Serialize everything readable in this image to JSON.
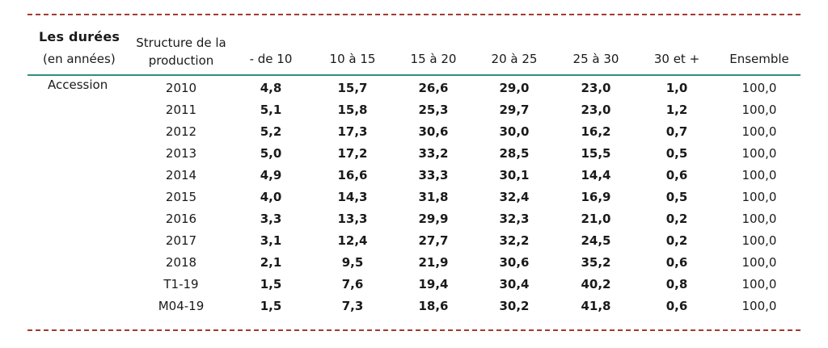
{
  "header": {
    "title": "Les durées",
    "subtitle": "(en années)",
    "structure_label": "Structure de la production",
    "columns": [
      "- de 10",
      "10 à 15",
      "15 à 20",
      "20 à 25",
      "25 à 30",
      "30 et +",
      "Ensemble"
    ]
  },
  "category": "Accession",
  "rows": [
    {
      "period": "2010",
      "values": [
        "4,8",
        "15,7",
        "26,6",
        "29,0",
        "23,0",
        "1,0"
      ],
      "total": "100,0"
    },
    {
      "period": "2011",
      "values": [
        "5,1",
        "15,8",
        "25,3",
        "29,7",
        "23,0",
        "1,2"
      ],
      "total": "100,0"
    },
    {
      "period": "2012",
      "values": [
        "5,2",
        "17,3",
        "30,6",
        "30,0",
        "16,2",
        "0,7"
      ],
      "total": "100,0"
    },
    {
      "period": "2013",
      "values": [
        "5,0",
        "17,2",
        "33,2",
        "28,5",
        "15,5",
        "0,5"
      ],
      "total": "100,0"
    },
    {
      "period": "2014",
      "values": [
        "4,9",
        "16,6",
        "33,3",
        "30,1",
        "14,4",
        "0,6"
      ],
      "total": "100,0"
    },
    {
      "period": "2015",
      "values": [
        "4,0",
        "14,3",
        "31,8",
        "32,4",
        "16,9",
        "0,5"
      ],
      "total": "100,0"
    },
    {
      "period": "2016",
      "values": [
        "3,3",
        "13,3",
        "29,9",
        "32,3",
        "21,0",
        "0,2"
      ],
      "total": "100,0"
    },
    {
      "period": "2017",
      "values": [
        "3,1",
        "12,4",
        "27,7",
        "32,2",
        "24,5",
        "0,2"
      ],
      "total": "100,0"
    },
    {
      "period": "2018",
      "values": [
        "2,1",
        "9,5",
        "21,9",
        "30,6",
        "35,2",
        "0,6"
      ],
      "total": "100,0"
    },
    {
      "period": "T1-19",
      "values": [
        "1,5",
        "7,6",
        "19,4",
        "30,4",
        "40,2",
        "0,8"
      ],
      "total": "100,0"
    },
    {
      "period": "M04-19",
      "values": [
        "1,5",
        "7,3",
        "18,6",
        "30,2",
        "41,8",
        "0,6"
      ],
      "total": "100,0"
    }
  ]
}
